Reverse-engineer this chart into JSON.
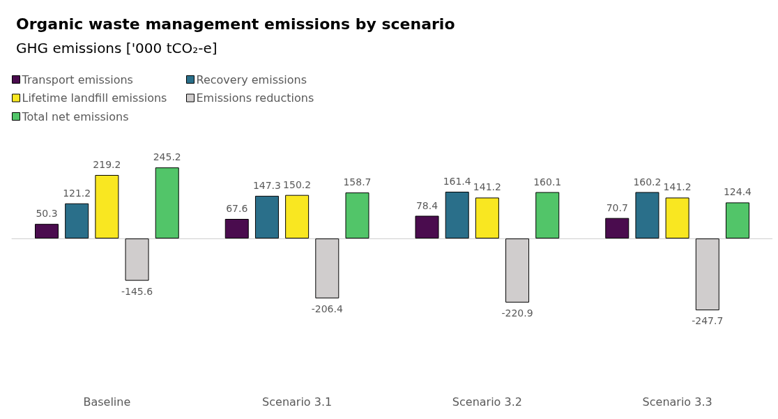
{
  "chart_data": {
    "type": "bar",
    "title": "Organic waste management emissions by scenario",
    "subtitle": "GHG emissions ['000 tCO₂-e]",
    "categories": [
      "Baseline",
      "Scenario 3.1",
      "Scenario 3.2",
      "Scenario 3.3"
    ],
    "series": [
      {
        "name": "Transport emissions",
        "color": "#4a0c4e",
        "values": [
          50.3,
          67.6,
          78.4,
          70.7
        ]
      },
      {
        "name": "Recovery emissions",
        "color": "#2a6f8a",
        "values": [
          121.2,
          147.3,
          161.4,
          160.2
        ]
      },
      {
        "name": "Lifetime landfill emissions",
        "color": "#f9e721",
        "values": [
          219.2,
          150.2,
          141.2,
          141.2
        ]
      },
      {
        "name": "Emissions reductions",
        "color": "#d0cdcd",
        "values": [
          -145.6,
          -206.4,
          -220.9,
          -247.7
        ]
      },
      {
        "name": "Total net emissions",
        "color": "#52c569",
        "values": [
          245.2,
          158.7,
          160.1,
          124.4
        ]
      }
    ],
    "data_labels": true,
    "legend": "top left"
  }
}
